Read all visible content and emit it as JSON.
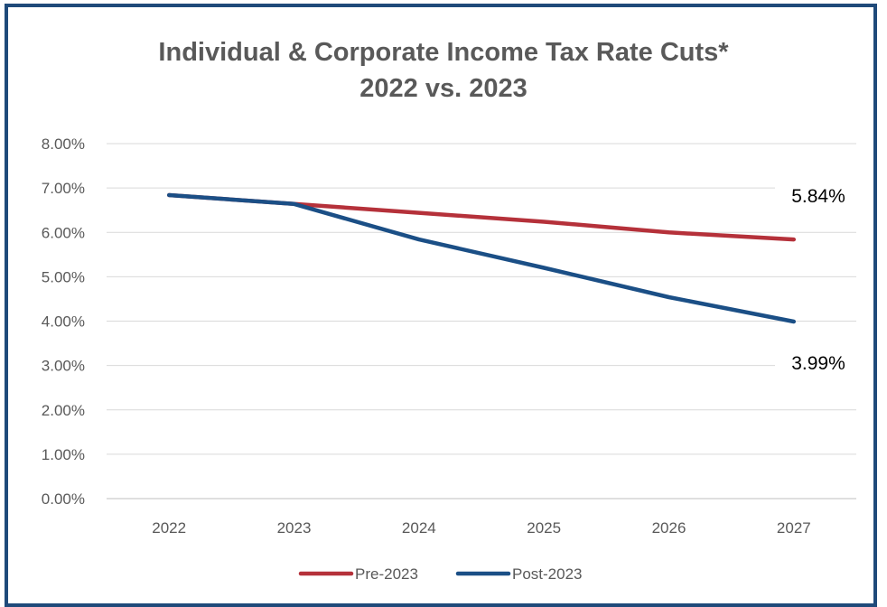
{
  "chart_data": {
    "type": "line",
    "title_lines": [
      "Individual & Corporate Income Tax Rate Cuts*",
      "2022 vs. 2023"
    ],
    "categories": [
      "2022",
      "2023",
      "2024",
      "2025",
      "2026",
      "2027"
    ],
    "ylim": [
      0,
      8
    ],
    "yticks": [
      0,
      1,
      2,
      3,
      4,
      5,
      6,
      7,
      8
    ],
    "ytick_labels": [
      "0.00%",
      "1.00%",
      "2.00%",
      "3.00%",
      "4.00%",
      "5.00%",
      "6.00%",
      "7.00%",
      "8.00%"
    ],
    "grid": true,
    "legend_position": "bottom",
    "series": [
      {
        "name": "Pre-2023",
        "color": "#b5313a",
        "values": [
          6.84,
          6.64,
          6.44,
          6.24,
          6.0,
          5.84
        ]
      },
      {
        "name": "Post-2023",
        "color": "#1b4f86",
        "values": [
          6.84,
          6.64,
          5.84,
          5.2,
          4.54,
          3.99
        ]
      }
    ],
    "annotations": [
      {
        "text": "5.84%",
        "series": 0,
        "index": 5
      },
      {
        "text": "3.99%",
        "series": 1,
        "index": 5
      }
    ]
  }
}
